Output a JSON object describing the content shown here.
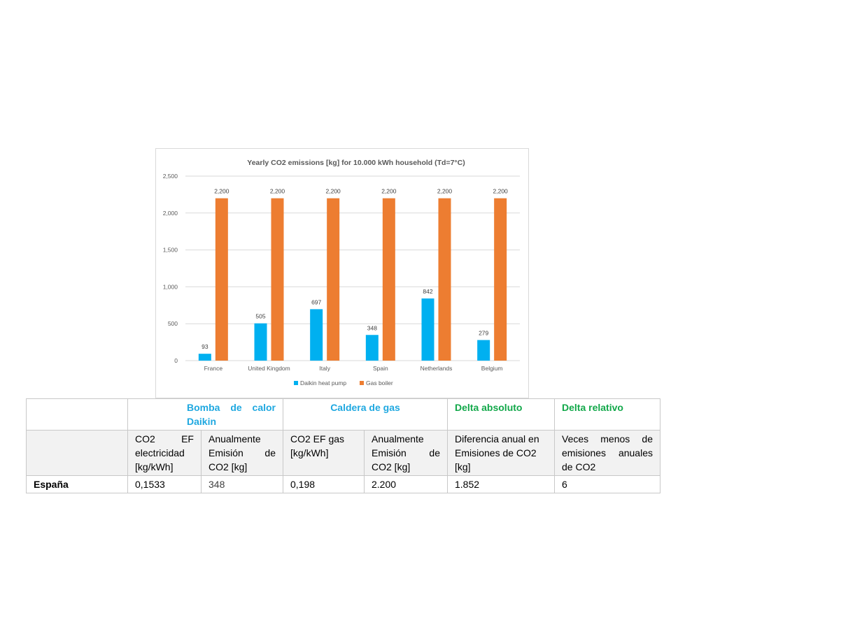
{
  "chart_data": {
    "type": "bar",
    "title": "Yearly CO2 emissions [kg] for 10.000 kWh household (Td=7°C)",
    "categories": [
      "France",
      "United Kingdom",
      "Italy",
      "Spain",
      "Netherlands",
      "Belgium"
    ],
    "series": [
      {
        "name": "Daikin heat pump",
        "color": "#00b0f0",
        "values": [
          93,
          505,
          697,
          348,
          842,
          279
        ],
        "labels": [
          "93",
          "505",
          "697",
          "348",
          "842",
          "279"
        ]
      },
      {
        "name": "Gas boiler",
        "color": "#ed7d31",
        "values": [
          2200,
          2200,
          2200,
          2200,
          2200,
          2200
        ],
        "labels": [
          "2,200",
          "2,200",
          "2,200",
          "2,200",
          "2,200",
          "2,200"
        ]
      }
    ],
    "ylim": [
      0,
      2500
    ],
    "yticks": [
      0,
      500,
      1000,
      1500,
      2000,
      2500
    ],
    "ytick_labels": [
      "0",
      "500",
      "1,000",
      "1,500",
      "2,000",
      "2,500"
    ],
    "grid": true,
    "legend": "bottom"
  },
  "table": {
    "headers": {
      "heat_pump": "Bomba de calor Daikin",
      "gas_boiler": "Caldera de gas",
      "delta_abs": "Delta absoluto",
      "delta_rel": "Delta relativo"
    },
    "subheaders": {
      "hp_ef": "CO2 EF electricidad [kg/kWh]",
      "hp_emission": "Anualmente Emisión de CO2 [kg]",
      "gas_ef": "CO2 EF gas [kg/kWh]",
      "gas_emission": "Anualmente Emisión de CO2 [kg]",
      "delta_abs": "Diferencia anual en Emisiones de CO2 [kg]",
      "delta_rel": "Veces menos de emisiones anuales de CO2"
    },
    "row": {
      "country": "España",
      "hp_ef": "0,1533",
      "hp_emission": "348",
      "gas_ef": "0,198",
      "gas_emission": "2.200",
      "delta_abs": "1.852",
      "delta_rel": "6"
    },
    "colors": {
      "blue": "#1fa8e0",
      "green": "#12a84a"
    }
  }
}
